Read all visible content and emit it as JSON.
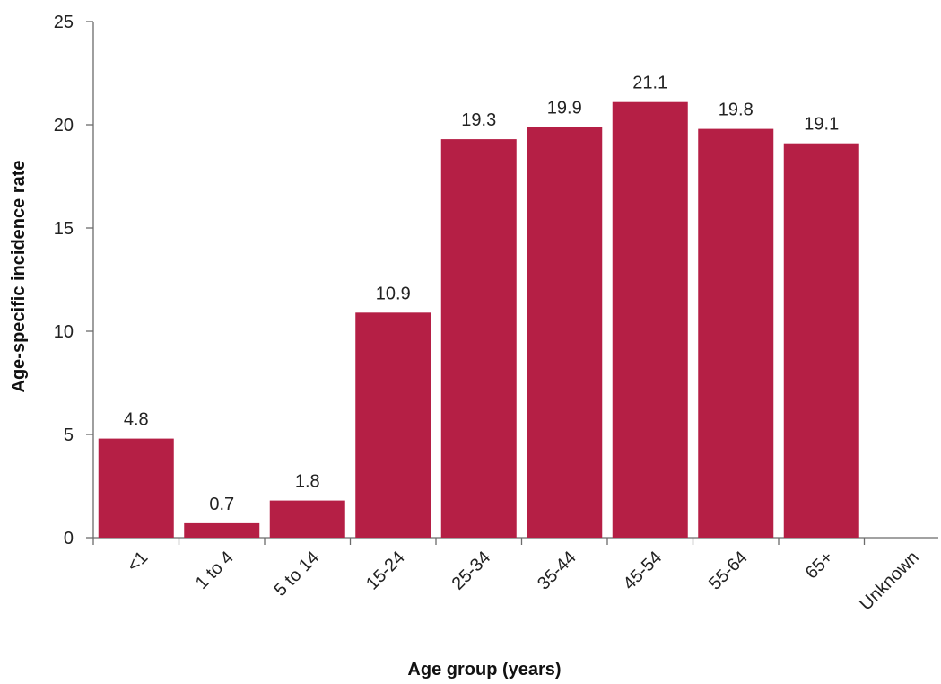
{
  "chart_data": {
    "type": "bar",
    "categories": [
      "<1",
      "1 to 4",
      "5 to 14",
      "15-24",
      "25-34",
      "35-44",
      "45-54",
      "55-64",
      "65+",
      "Unknown"
    ],
    "values": [
      4.8,
      0.7,
      1.8,
      10.9,
      19.3,
      19.9,
      21.1,
      19.8,
      19.1,
      null
    ],
    "data_labels": [
      "4.8",
      "0.7",
      "1.8",
      "10.9",
      "19.3",
      "19.9",
      "21.1",
      "19.8",
      "19.1",
      ""
    ],
    "xlabel": "Age group (years)",
    "ylabel": "Age-specific incidence rate",
    "ylim": [
      0,
      25
    ],
    "yticks": [
      "0",
      "5",
      "10",
      "15",
      "20",
      "25"
    ],
    "bar_color": "#b51f45",
    "grid": false,
    "legend": "none"
  }
}
